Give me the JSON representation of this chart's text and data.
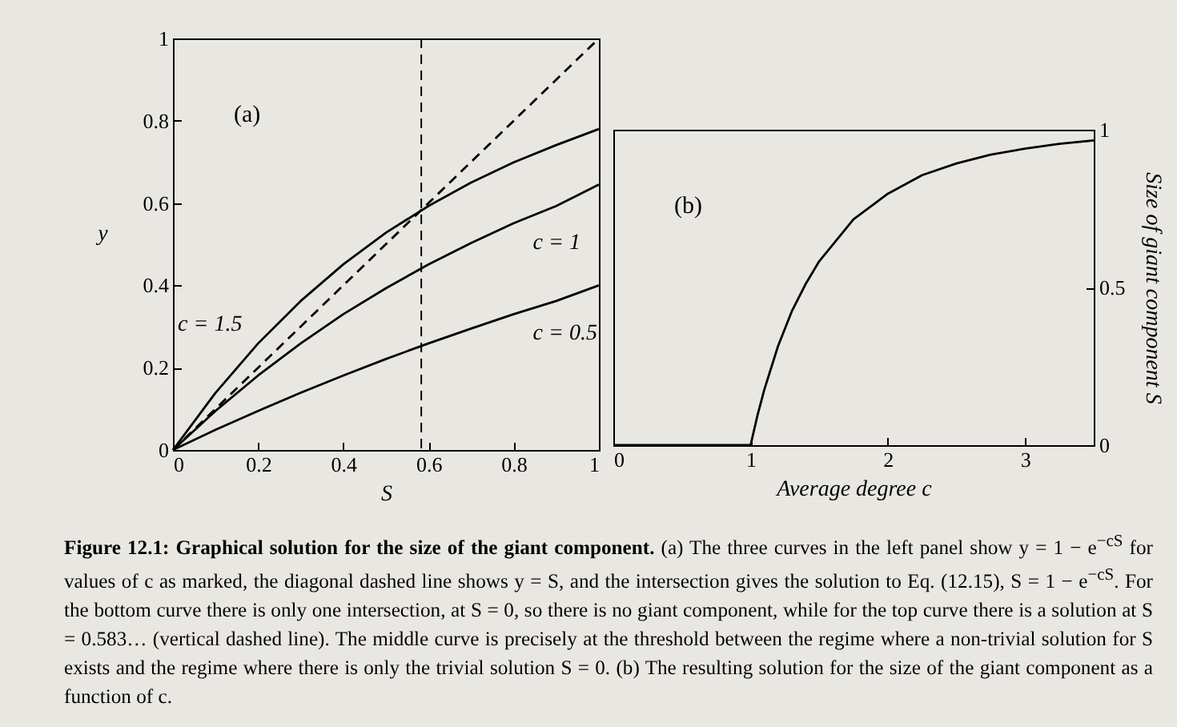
{
  "chart_data": [
    {
      "type": "line",
      "xlabel": "S",
      "ylabel": "y",
      "xlim": [
        0,
        1
      ],
      "ylim": [
        0,
        1
      ],
      "xticks": [
        0,
        0.2,
        0.4,
        0.6,
        0.8,
        1
      ],
      "yticks": [
        0,
        0.2,
        0.4,
        0.6,
        0.8,
        1
      ],
      "x": [
        0,
        0.1,
        0.2,
        0.3,
        0.4,
        0.5,
        0.6,
        0.7,
        0.8,
        0.9,
        1
      ],
      "series": [
        {
          "name": "c = 1.5",
          "color": "#000000",
          "values": [
            0,
            0.139,
            0.259,
            0.362,
            0.451,
            0.528,
            0.593,
            0.65,
            0.699,
            0.741,
            0.78
          ]
        },
        {
          "name": "c = 1",
          "color": "#000000",
          "values": [
            0,
            0.095,
            0.181,
            0.259,
            0.33,
            0.393,
            0.451,
            0.503,
            0.551,
            0.593,
            0.645
          ]
        },
        {
          "name": "c = 0.5",
          "color": "#000000",
          "values": [
            0,
            0.049,
            0.095,
            0.139,
            0.181,
            0.221,
            0.259,
            0.295,
            0.33,
            0.362,
            0.4
          ]
        },
        {
          "color": "#000000",
          "line_style": "dashed",
          "x": [
            0,
            1
          ],
          "values": [
            0,
            1
          ]
        }
      ],
      "ref_lines": [
        {
          "axis": "x",
          "value": 0.583,
          "line_style": "dashed",
          "color": "#000000"
        }
      ],
      "annotations": [
        "(a)",
        "Figure 12.1: Graphical solution for the size of the giant component.",
        "(a) The three curves in the left panel show y = 1 − e$^{−cS}$ for values of c as marked, the diagonal dashed line shows y = S, and the intersection gives the solution to Eq. (12.15), S = 1 − e$^{−cS}$. For the bottom curve there is only one intersection, at S = 0, so there is no giant component, while for the top curve there is a solution at S = 0.583… (vertical dashed line). The middle curve is precisely at the threshold between the regime where a non-trivial solution for S exists and the regime where there is only the trivial solution S = 0. (b) The resulting solution for the size of the giant component as a function of c."
      ]
    },
    {
      "type": "line",
      "xlabel": "Average degree  c",
      "ylabel": "Size of giant component  S",
      "xlim": [
        0,
        3.5
      ],
      "ylim": [
        0,
        1
      ],
      "xticks": [
        0,
        1,
        2,
        3
      ],
      "yticks": [
        0,
        0.5,
        1
      ],
      "x": [
        0,
        1,
        1.05,
        1.1,
        1.2,
        1.3,
        1.4,
        1.5,
        1.75,
        2,
        2.25,
        2.5,
        2.75,
        3,
        3.25,
        3.5
      ],
      "series": [
        {
          "color": "#000000",
          "values": [
            0,
            0,
            0.094,
            0.176,
            0.314,
            0.424,
            0.51,
            0.583,
            0.716,
            0.797,
            0.856,
            0.893,
            0.921,
            0.94,
            0.955,
            0.966
          ]
        }
      ],
      "annotations": [
        "(b)"
      ]
    }
  ]
}
